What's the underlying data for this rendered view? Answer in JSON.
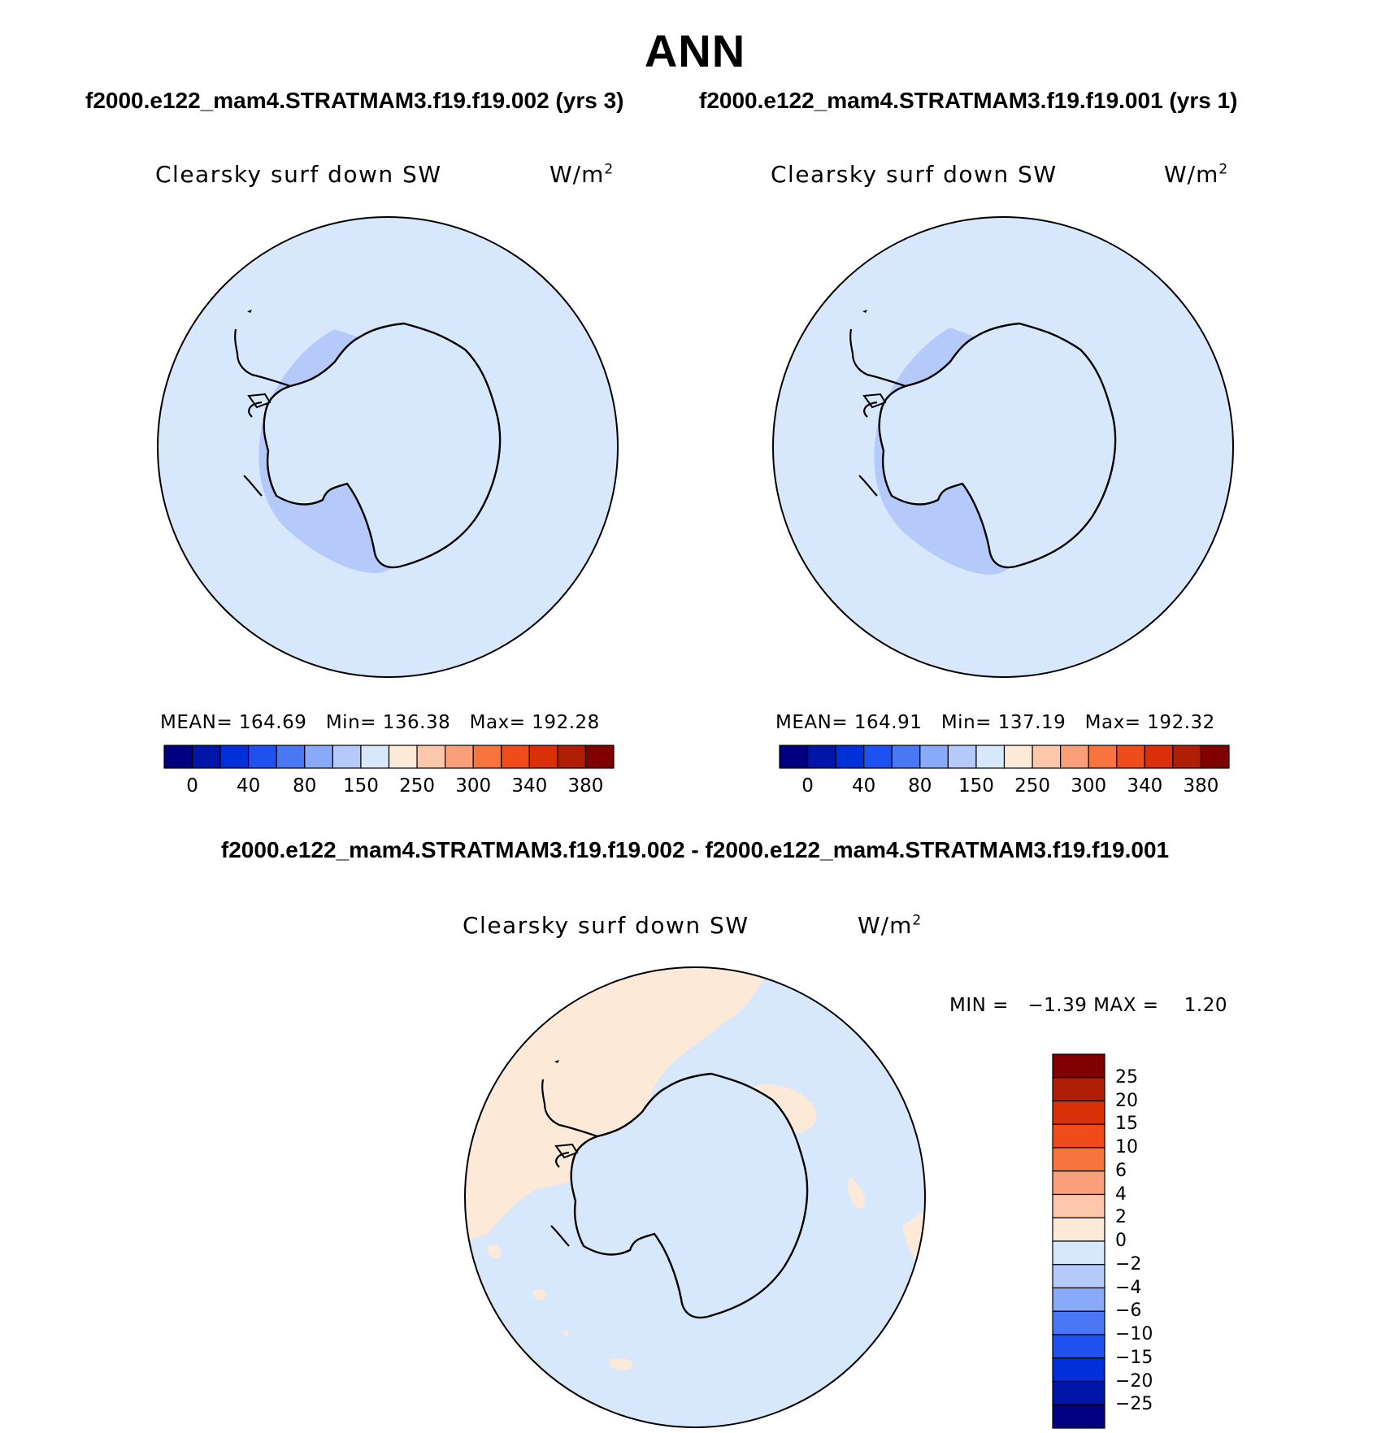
{
  "figure": {
    "title": "ANN",
    "case_titles": [
      "f2000.e122_mam4.STRATMAM3.f19.f19.002 (yrs 3)",
      "f2000.e122_mam4.STRATMAM3.f19.f19.001 (yrs 1)"
    ],
    "diff_title": "f2000.e122_mam4.STRATMAM3.f19.f19.002 - f2000.e122_mam4.STRATMAM3.f19.f19.001"
  },
  "panels": [
    {
      "variable": "Clearsky surf down SW",
      "units": "W/m",
      "units_sup": "2",
      "mean_label": "MEAN=",
      "mean": "164.69",
      "min_label": "Min=",
      "min": "136.38",
      "max_label": "Max=",
      "max": "192.28"
    },
    {
      "variable": "Clearsky surf down SW",
      "units": "W/m",
      "units_sup": "2",
      "mean_label": "MEAN=",
      "mean": "164.91",
      "min_label": "Min=",
      "min": "137.19",
      "max_label": "Max=",
      "max": "192.32"
    }
  ],
  "diff_panel": {
    "variable": "Clearsky surf down SW",
    "units": "W/m",
    "units_sup": "2",
    "minmax_text": "MIN =   −1.39 MAX =    1.20"
  },
  "colorbar_abs": {
    "tick_labels": [
      "0",
      "40",
      "80",
      "150",
      "250",
      "300",
      "340",
      "380"
    ],
    "colors": [
      "#000080",
      "#0016a8",
      "#0030d8",
      "#1f50f0",
      "#4a78f5",
      "#88aaf8",
      "#b5cafb",
      "#d8e8fc",
      "#fde9d8",
      "#fcc7aa",
      "#fa9f79",
      "#f8743f",
      "#f04b1a",
      "#d9300a",
      "#b01e05",
      "#800000"
    ]
  },
  "colorbar_diff": {
    "tick_labels": [
      "25",
      "20",
      "15",
      "10",
      "6",
      "4",
      "2",
      "0",
      "−2",
      "−4",
      "−6",
      "−10",
      "−15",
      "−20",
      "−25"
    ],
    "colors_top_to_bottom": [
      "#800000",
      "#b01e05",
      "#d9300a",
      "#f04b1a",
      "#f8743f",
      "#fa9f79",
      "#fcc7aa",
      "#fde9d8",
      "#d8e8fc",
      "#b5cafb",
      "#88aaf8",
      "#4a78f5",
      "#1f50f0",
      "#0030d8",
      "#0016a8",
      "#000080"
    ]
  },
  "map_colors": {
    "ocean_abs": "#d8e8fc",
    "interior_abs": "#b5cafb",
    "diff_positive": "#fde9d8",
    "diff_negative": "#d8e8fc",
    "continent_outline": "#000000"
  }
}
